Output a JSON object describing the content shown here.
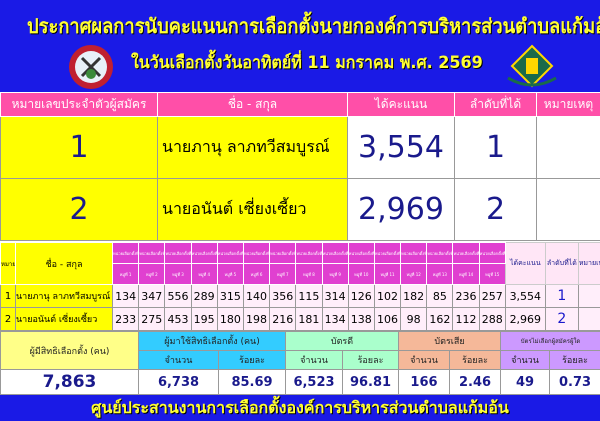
{
  "header": {
    "title": "ประกาศผลการนับคะแนนการเลือกตั้งนายกองค์การบริหารส่วนตำบลแก้มอ้น",
    "subtitle": "ในวันเลือกตั้งวันอาทิตย์ที่ 11 มกราคม พ.ศ. 2569"
  },
  "main": {
    "columns": [
      "หมายเลขประจำตัวผู้สมัคร",
      "ชื่อ - สกุล",
      "ได้คะแนน",
      "ลำดับที่ได้",
      "หมายเหตุ"
    ],
    "rows": [
      {
        "no": "1",
        "name": "นายภานุ  ลาภทวีสมบูรณ์",
        "votes": "3,554",
        "rank": "1",
        "note": ""
      },
      {
        "no": "2",
        "name": "นายอนันต์ เซี่ยงเซี้ยว",
        "votes": "2,969",
        "rank": "2",
        "note": ""
      }
    ]
  },
  "detail": {
    "no_header": "หมายเลข",
    "name_header": "ชื่อ - สกุล",
    "units": [
      "หน่วยเลือกตั้งที่ 1",
      "หน่วยเลือกตั้งที่ 2",
      "หน่วยเลือกตั้งที่ 3",
      "หน่วยเลือกตั้งที่ 4",
      "หน่วยเลือกตั้งที่ 5",
      "หน่วยเลือกตั้งที่ 6",
      "หน่วยเลือกตั้งที่ 7",
      "หน่วยเลือกตั้งที่ 8",
      "หน่วยเลือกตั้งที่ 9",
      "หน่วยเลือกตั้งที่ 10",
      "หน่วยเลือกตั้งที่ 11",
      "หน่วยเลือกตั้งที่ 12",
      "หน่วยเลือกตั้งที่ 13",
      "หน่วยเลือกตั้งที่ 14",
      "หน่วยเลือกตั้งที่ 15"
    ],
    "villages": [
      "หมู่ที่ 1",
      "หมู่ที่ 2",
      "หมู่ที่ 3",
      "หมู่ที่ 4",
      "หมู่ที่ 5",
      "หมู่ที่ 6",
      "หมู่ที่ 7",
      "หมู่ที่ 8",
      "หมู่ที่ 9",
      "หมู่ที่ 10",
      "หมู่ที่ 11",
      "หมู่ที่ 12",
      "หมู่ที่ 13",
      "หมู่ที่ 14",
      "หมู่ที่ 15"
    ],
    "total_header": "ได้คะแนน",
    "rank_header": "ลำดับที่ได้",
    "note_header": "หมายเหตุ",
    "rows": [
      {
        "no": "1",
        "name": "นายภานุ  ลาภทวีสมบูรณ์",
        "votes": [
          "134",
          "347",
          "556",
          "289",
          "315",
          "140",
          "356",
          "115",
          "314",
          "126",
          "102",
          "182",
          "85",
          "236",
          "257"
        ],
        "total": "3,554",
        "rank": "1"
      },
      {
        "no": "2",
        "name": "นายอนันต์  เซี่ยงเซี้ยว",
        "votes": [
          "233",
          "275",
          "453",
          "195",
          "180",
          "198",
          "216",
          "181",
          "134",
          "138",
          "106",
          "98",
          "162",
          "112",
          "288"
        ],
        "total": "2,969",
        "rank": "2"
      }
    ]
  },
  "summary": {
    "eligible_label": "ผู้มีสิทธิเลือกตั้ง (คน)",
    "eligible": "7,863",
    "turnout_label": "ผู้มาใช้สิทธิเลือกตั้ง (คน)",
    "good_label": "บัตรดี",
    "bad_label": "บัตรเสีย",
    "none_label": "บัตรไม่เลือกผู้สมัครผู้ใด",
    "count_label": "จำนวน",
    "pct_label": "ร้อยละ",
    "turnout": "6,738",
    "turnout_pct": "85.69",
    "good": "6,523",
    "good_pct": "96.81",
    "bad": "166",
    "bad_pct": "2.46",
    "none": "49",
    "none_pct": "0.73"
  },
  "footer": "ศูนย์ประสานงานการเลือกตั้งองค์การบริหารส่วนตำบลแก้มอ้น",
  "colors": {
    "banner": "#1a1ae6",
    "title": "#ffff33",
    "header": "#ff4fa8",
    "highlight": "#ffff00"
  }
}
